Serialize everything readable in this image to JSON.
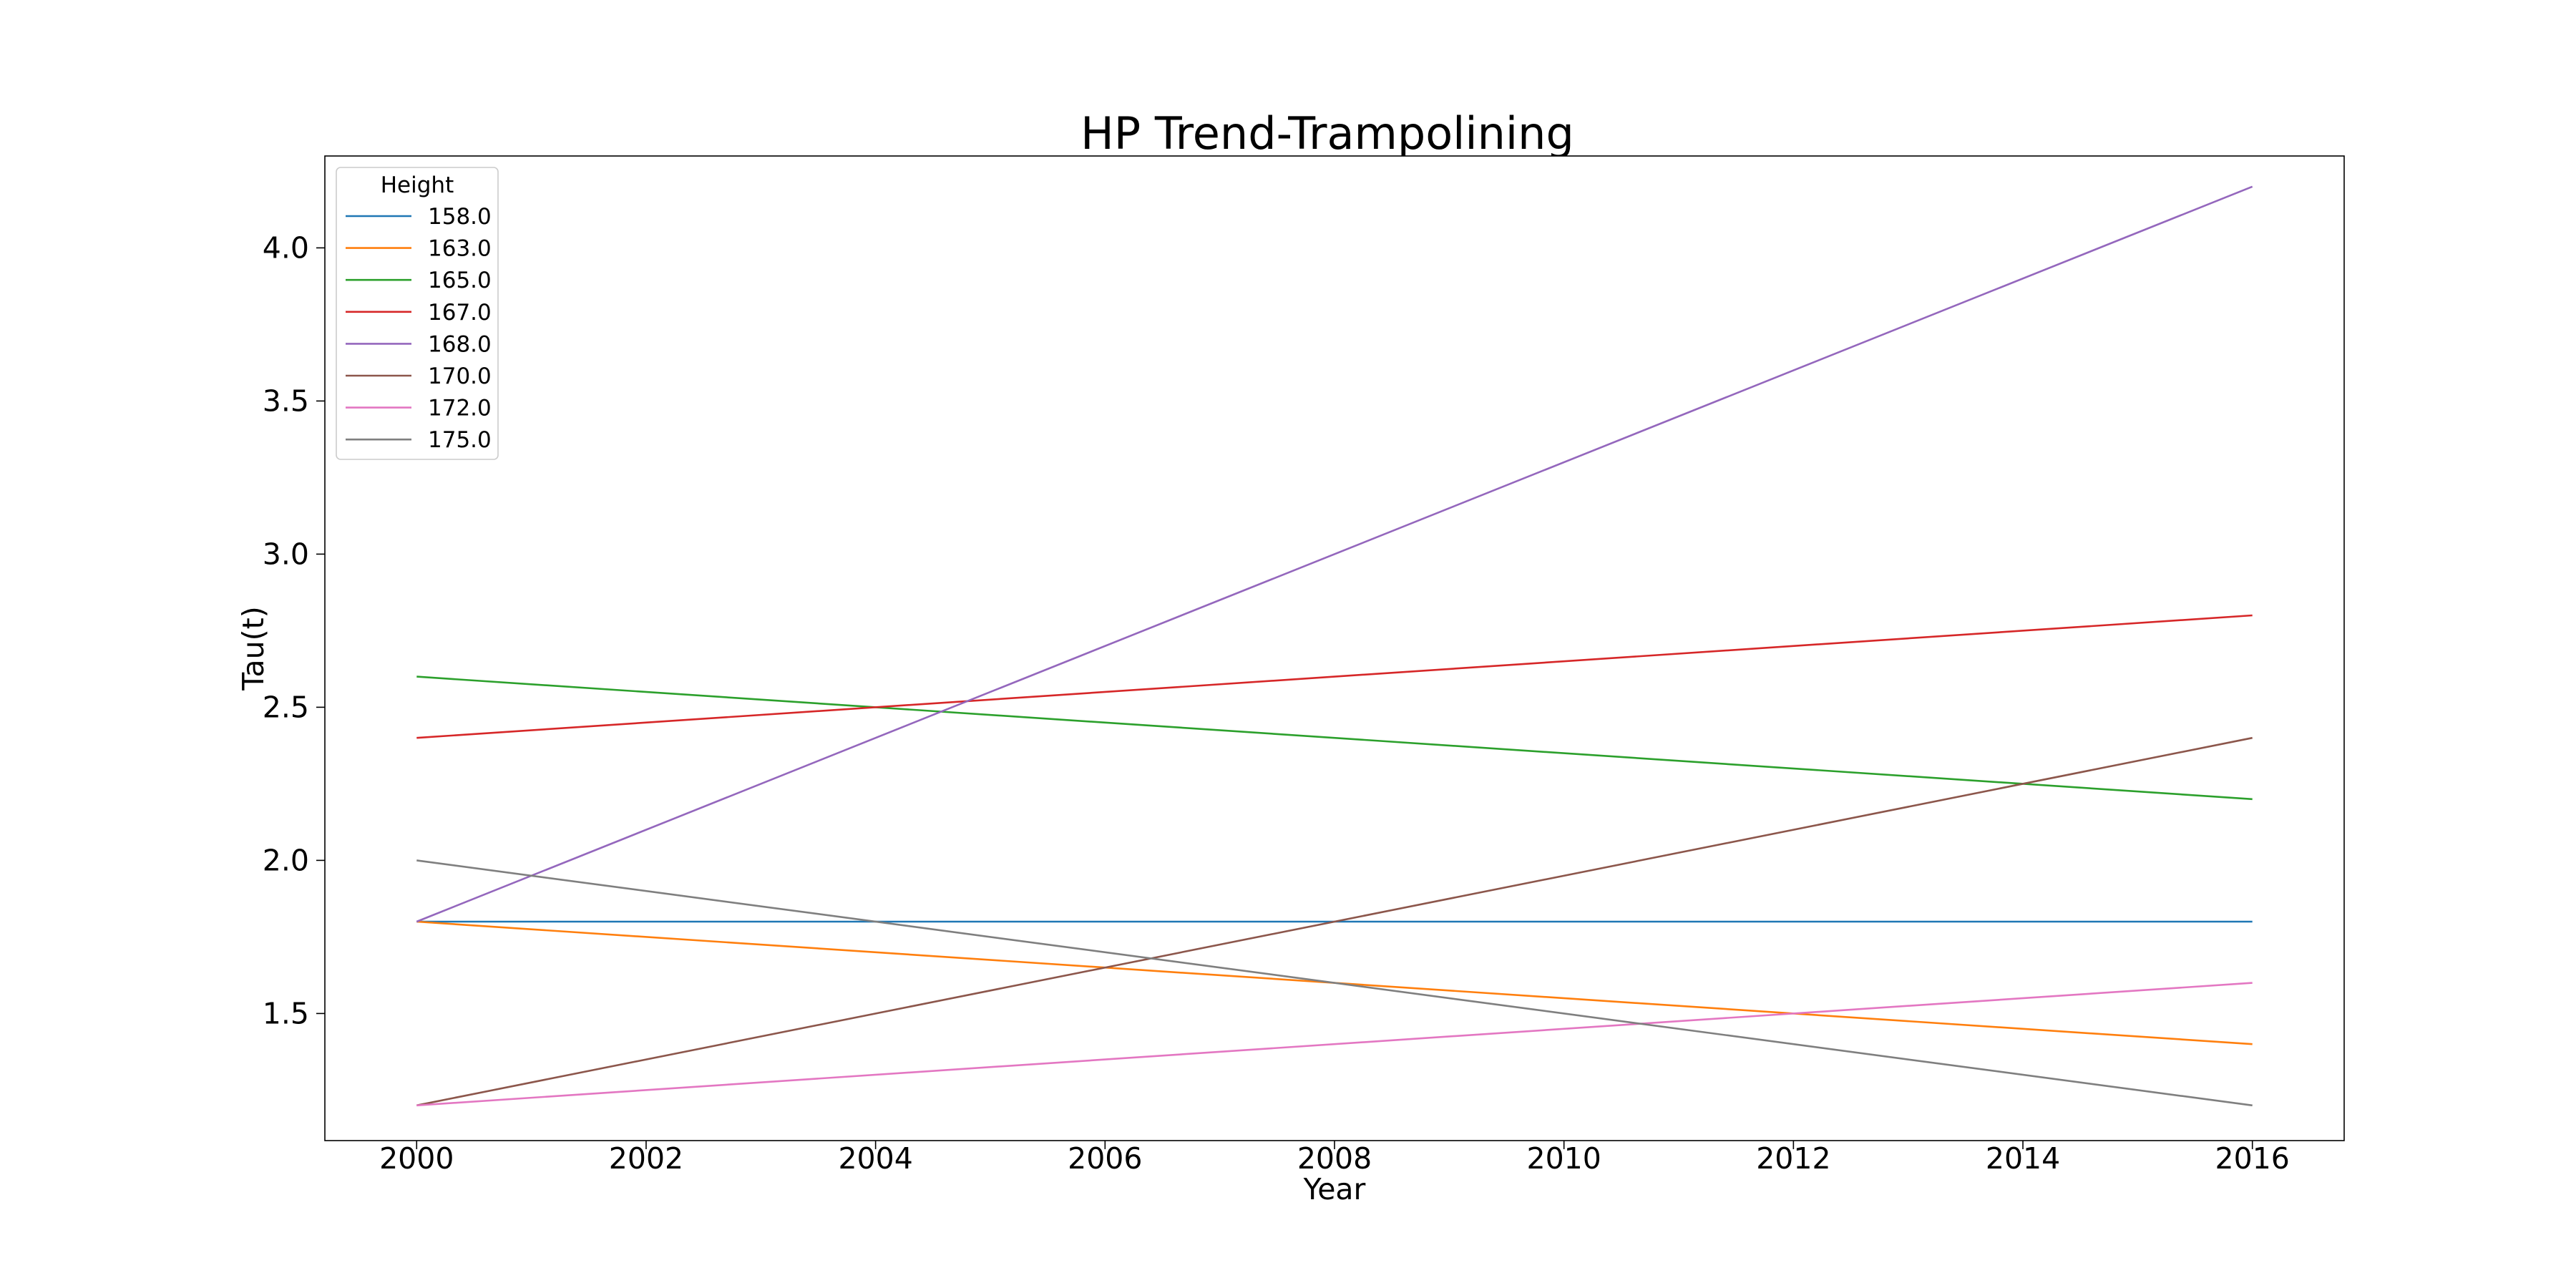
{
  "chart_data": {
    "type": "line",
    "title": "HP Trend-Trampolining",
    "xlabel": "Year",
    "ylabel": "Tau(t)",
    "xlim": [
      1999.2,
      2016.8
    ],
    "ylim": [
      1.085,
      4.3
    ],
    "xticks": [
      2000,
      2002,
      2004,
      2006,
      2008,
      2010,
      2012,
      2014,
      2016
    ],
    "xtick_labels": [
      "2000",
      "2002",
      "2004",
      "2006",
      "2008",
      "2010",
      "2012",
      "2014",
      "2016"
    ],
    "yticks": [
      1.5,
      2.0,
      2.5,
      3.0,
      3.5,
      4.0
    ],
    "ytick_labels": [
      "1.5",
      "2.0",
      "2.5",
      "3.0",
      "3.5",
      "4.0"
    ],
    "grid": false,
    "legend": {
      "title": "Height",
      "placement": "top-left"
    },
    "series": [
      {
        "name": "158.0",
        "color": "#1f77b4",
        "x": [
          2000,
          2016
        ],
        "y": [
          1.8,
          1.8
        ]
      },
      {
        "name": "163.0",
        "color": "#ff7f0e",
        "x": [
          2000,
          2016
        ],
        "y": [
          1.8,
          1.4
        ]
      },
      {
        "name": "165.0",
        "color": "#2ca02c",
        "x": [
          2000,
          2016
        ],
        "y": [
          2.6,
          2.2
        ]
      },
      {
        "name": "167.0",
        "color": "#d62728",
        "x": [
          2000,
          2016
        ],
        "y": [
          2.4,
          2.8
        ]
      },
      {
        "name": "168.0",
        "color": "#9467bd",
        "x": [
          2000,
          2016
        ],
        "y": [
          1.8,
          4.2
        ]
      },
      {
        "name": "170.0",
        "color": "#8c564b",
        "x": [
          2000,
          2016
        ],
        "y": [
          1.2,
          2.4
        ]
      },
      {
        "name": "172.0",
        "color": "#e377c2",
        "x": [
          2000,
          2016
        ],
        "y": [
          1.2,
          1.6
        ]
      },
      {
        "name": "175.0",
        "color": "#7f7f7f",
        "x": [
          2000,
          2016
        ],
        "y": [
          2.0,
          1.2
        ]
      }
    ]
  }
}
